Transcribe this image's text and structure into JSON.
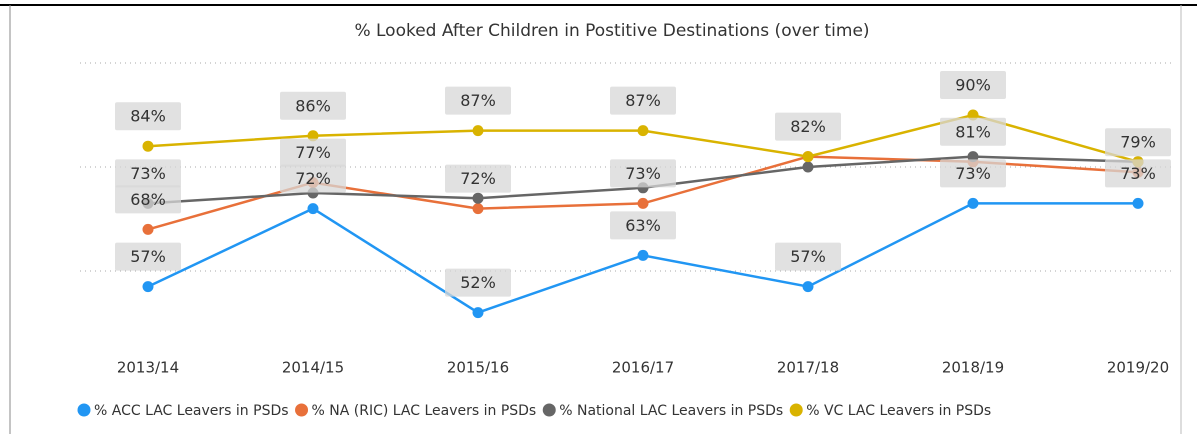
{
  "chart_data": {
    "type": "line",
    "title": "% Looked After Children in Postitive Destinations (over time)",
    "categories": [
      "2013/14",
      "2014/15",
      "2015/16",
      "2016/17",
      "2017/18",
      "2018/19",
      "2019/20"
    ],
    "ylim": [
      45,
      100
    ],
    "yticks": [
      60,
      80,
      100
    ],
    "grid": true,
    "legend": "bottom",
    "series": [
      {
        "name": "% ACC LAC Leavers in PSDs",
        "color": "#2196f3",
        "values": [
          57,
          72,
          52,
          63,
          57,
          73,
          73
        ],
        "value_labels": [
          "57%",
          "72%",
          "52%",
          "63%",
          "57%",
          "73%",
          "73%"
        ]
      },
      {
        "name": "% NA (RIC) LAC Leavers in PSDs",
        "color": "#e8703a",
        "values": [
          68,
          77,
          72,
          73,
          82,
          81,
          79
        ],
        "value_labels": [
          "68%",
          "77%",
          "72%",
          "73%",
          null,
          "81%",
          "79%"
        ]
      },
      {
        "name": "% National  LAC Leavers in PSDs",
        "color": "#666666",
        "values": [
          73,
          75,
          74,
          76,
          80,
          82,
          81
        ],
        "value_labels": [
          "73%",
          null,
          null,
          null,
          null,
          null,
          null
        ]
      },
      {
        "name": "% VC LAC Leavers in PSDs",
        "color": "#d9b300",
        "values": [
          84,
          86,
          87,
          87,
          82,
          90,
          81
        ],
        "value_labels": [
          "84%",
          "86%",
          "87%",
          "87%",
          "82%",
          "90%",
          null
        ]
      }
    ]
  }
}
